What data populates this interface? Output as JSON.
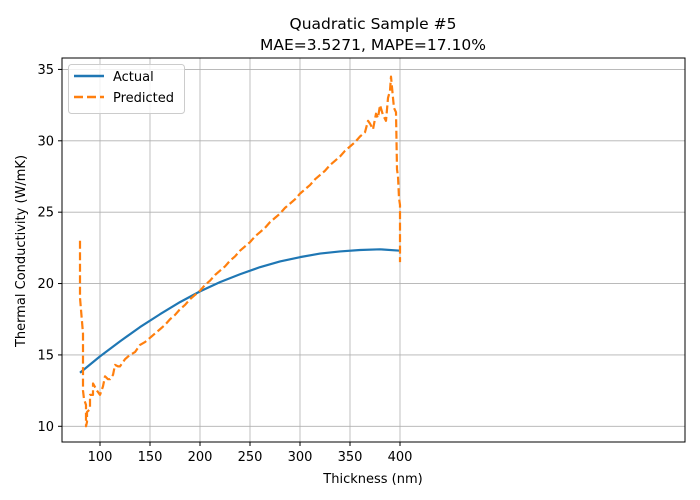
{
  "chart_data": {
    "type": "line",
    "title": "Quadratic Sample #5",
    "subtitle": "MAE=3.5271, MAPE=17.10%",
    "xlabel": "Thickness (nm)",
    "ylabel": "Thermal Conductivity (W/mK)",
    "xlim": [
      62,
      685
    ],
    "ylim": [
      8.9,
      35.8
    ],
    "xticks": [
      100,
      150,
      200,
      250,
      300,
      350,
      400
    ],
    "yticks": [
      10,
      15,
      20,
      25,
      30,
      35
    ],
    "grid": true,
    "legend_position": "top-left",
    "series": [
      {
        "name": "Actual",
        "color": "#1f77b4",
        "style": "solid",
        "x": [
          80,
          100,
          120,
          140,
          160,
          180,
          200,
          220,
          240,
          260,
          280,
          300,
          320,
          340,
          360,
          380,
          400
        ],
        "y": [
          13.75,
          14.9,
          15.95,
          16.95,
          17.85,
          18.7,
          19.45,
          20.1,
          20.65,
          21.15,
          21.55,
          21.85,
          22.1,
          22.25,
          22.35,
          22.4,
          22.3
        ]
      },
      {
        "name": "Predicted",
        "color": "#ff7f0e",
        "style": "dashed",
        "x": [
          80,
          80,
          80,
          83,
          83,
          84,
          86,
          86,
          87,
          87,
          90,
          90,
          93,
          93,
          97,
          100,
          103,
          105,
          108,
          110,
          113,
          115,
          118,
          120,
          125,
          130,
          135,
          140,
          145,
          150,
          155,
          160,
          165,
          170,
          175,
          180,
          185,
          190,
          195,
          200,
          205,
          210,
          215,
          220,
          225,
          230,
          235,
          240,
          245,
          250,
          255,
          260,
          265,
          270,
          275,
          280,
          285,
          290,
          295,
          300,
          305,
          310,
          315,
          320,
          325,
          330,
          335,
          340,
          345,
          350,
          355,
          360,
          365,
          368,
          370,
          373,
          376,
          378,
          380,
          383,
          386,
          388,
          390,
          391,
          393,
          394,
          396,
          397,
          398,
          399,
          400,
          400
        ],
        "y": [
          23.0,
          20.0,
          19.0,
          16.5,
          12.5,
          11.9,
          11.5,
          10.0,
          10.3,
          11.0,
          11.2,
          12.2,
          12.2,
          13.0,
          12.5,
          12.2,
          12.8,
          13.5,
          13.3,
          13.3,
          13.6,
          14.3,
          14.2,
          14.2,
          14.7,
          15.0,
          15.2,
          15.7,
          15.9,
          16.2,
          16.5,
          16.8,
          17.1,
          17.5,
          17.8,
          18.2,
          18.5,
          18.9,
          19.2,
          19.5,
          19.9,
          20.2,
          20.6,
          20.9,
          21.2,
          21.6,
          21.9,
          22.3,
          22.6,
          22.9,
          23.3,
          23.6,
          23.9,
          24.3,
          24.6,
          24.9,
          25.3,
          25.6,
          25.9,
          26.3,
          26.6,
          26.9,
          27.3,
          27.6,
          27.9,
          28.3,
          28.6,
          28.9,
          29.3,
          29.6,
          29.9,
          30.3,
          30.6,
          31.4,
          31.2,
          30.8,
          31.9,
          31.6,
          32.5,
          31.8,
          31.4,
          33.0,
          33.5,
          34.5,
          33.0,
          32.3,
          32.0,
          28.0,
          27.5,
          26.0,
          25.5,
          21.5
        ]
      }
    ]
  }
}
